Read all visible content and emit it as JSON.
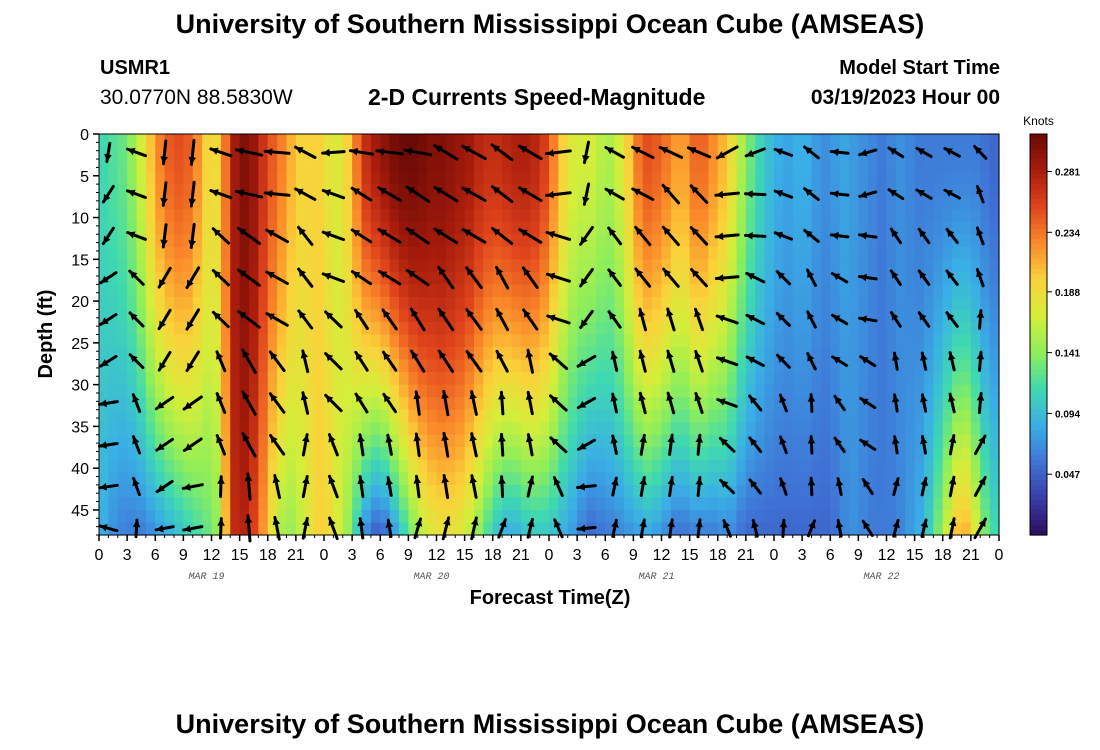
{
  "page": {
    "title": "University of Southern Mississippi Ocean Cube (AMSEAS)",
    "title_repeat": "University of Southern Mississippi Ocean Cube (AMSEAS)",
    "station": "USMR1",
    "coordinates": "30.0770N  88.5830W",
    "model_start_label": "Model Start Time",
    "model_start_value": "03/19/2023 Hour 00"
  },
  "chart_data": {
    "type": "heatmap",
    "title": "2-D Currents Speed-Magnitude",
    "xlabel": "Forecast Time(Z)",
    "ylabel": "Depth (ft)",
    "x_hours_range": [
      0,
      96
    ],
    "y_depth_range_ft": [
      0,
      48
    ],
    "x_tick_labels": [
      "0",
      "3",
      "6",
      "9",
      "12",
      "15",
      "18",
      "21",
      "0",
      "3",
      "6",
      "9",
      "12",
      "15",
      "18",
      "21",
      "0",
      "3",
      "6",
      "9",
      "12",
      "15",
      "18",
      "21",
      "0",
      "3",
      "6",
      "9",
      "12",
      "15",
      "18",
      "21",
      "0"
    ],
    "date_labels": [
      {
        "text": "MAR 19",
        "hour": 12
      },
      {
        "text": "MAR 20",
        "hour": 36
      },
      {
        "text": "MAR 21",
        "hour": 60
      },
      {
        "text": "MAR 22",
        "hour": 84
      }
    ],
    "y_ticks": [
      0,
      5,
      10,
      15,
      20,
      25,
      30,
      35,
      40,
      45
    ],
    "colorbar": {
      "unit_label": "Knots",
      "ticks": [
        "0.281",
        "0.234",
        "0.188",
        "0.141",
        "0.094",
        "0.047"
      ],
      "tick_values": [
        0.281,
        0.234,
        0.188,
        0.141,
        0.094,
        0.047
      ],
      "range": [
        0.0,
        0.31
      ],
      "colors": [
        "#2a0d5e",
        "#3a3ca8",
        "#3f74d6",
        "#3aaee6",
        "#3fd9b0",
        "#8eee5a",
        "#d4ee3a",
        "#fbd23a",
        "#fb8a2a",
        "#e0441c",
        "#a81c0c",
        "#6a0a06"
      ]
    },
    "speed_time_profile_hours": [
      0,
      1.5,
      3,
      4.5,
      6,
      7,
      8,
      9,
      10,
      11,
      12,
      13,
      14,
      15,
      16,
      17,
      18,
      19,
      20,
      21,
      22,
      23,
      24,
      25,
      26,
      27,
      28,
      29,
      30,
      31,
      32,
      33,
      34,
      35,
      36,
      37,
      38,
      39,
      40,
      41,
      42,
      43,
      44,
      45,
      46,
      47,
      48,
      49,
      50,
      51,
      52,
      53,
      54,
      55,
      56,
      57,
      58,
      59,
      60,
      61,
      62,
      63,
      64,
      65,
      66,
      67,
      68,
      69,
      70,
      71,
      72,
      73,
      74,
      75,
      76,
      77,
      78,
      79,
      80,
      81,
      82,
      83,
      84,
      85,
      86,
      87,
      88,
      89,
      90,
      91,
      92,
      93,
      94,
      95,
      96
    ],
    "speed_surface_knots": [
      0.11,
      0.12,
      0.13,
      0.17,
      0.22,
      0.24,
      0.25,
      0.25,
      0.24,
      0.21,
      0.18,
      0.2,
      0.27,
      0.3,
      0.3,
      0.28,
      0.25,
      0.24,
      0.22,
      0.2,
      0.19,
      0.2,
      0.19,
      0.17,
      0.18,
      0.21,
      0.26,
      0.28,
      0.29,
      0.3,
      0.31,
      0.31,
      0.31,
      0.3,
      0.3,
      0.3,
      0.29,
      0.29,
      0.28,
      0.27,
      0.27,
      0.27,
      0.28,
      0.28,
      0.28,
      0.27,
      0.25,
      0.21,
      0.18,
      0.17,
      0.17,
      0.17,
      0.15,
      0.16,
      0.18,
      0.22,
      0.25,
      0.25,
      0.24,
      0.23,
      0.21,
      0.23,
      0.25,
      0.23,
      0.22,
      0.2,
      0.17,
      0.14,
      0.12,
      0.1,
      0.09,
      0.08,
      0.08,
      0.09,
      0.08,
      0.07,
      0.07,
      0.08,
      0.08,
      0.07,
      0.07,
      0.06,
      0.06,
      0.07,
      0.07,
      0.06,
      0.06,
      0.06,
      0.06,
      0.06,
      0.06,
      0.06,
      0.06,
      0.05,
      0.05
    ],
    "speed_bottom_knots": [
      0.09,
      0.07,
      0.06,
      0.06,
      0.07,
      0.08,
      0.09,
      0.1,
      0.11,
      0.12,
      0.13,
      0.15,
      0.26,
      0.28,
      0.27,
      0.24,
      0.2,
      0.16,
      0.14,
      0.15,
      0.17,
      0.19,
      0.2,
      0.18,
      0.16,
      0.13,
      0.08,
      0.05,
      0.04,
      0.06,
      0.09,
      0.12,
      0.15,
      0.17,
      0.18,
      0.18,
      0.18,
      0.17,
      0.15,
      0.13,
      0.1,
      0.09,
      0.08,
      0.09,
      0.1,
      0.1,
      0.1,
      0.09,
      0.08,
      0.07,
      0.05,
      0.05,
      0.06,
      0.06,
      0.07,
      0.07,
      0.08,
      0.08,
      0.07,
      0.06,
      0.05,
      0.06,
      0.06,
      0.06,
      0.06,
      0.07,
      0.06,
      0.05,
      0.05,
      0.05,
      0.05,
      0.05,
      0.05,
      0.05,
      0.05,
      0.05,
      0.05,
      0.06,
      0.07,
      0.07,
      0.06,
      0.06,
      0.06,
      0.06,
      0.07,
      0.08,
      0.09,
      0.12,
      0.15,
      0.19,
      0.22,
      0.2,
      0.15,
      0.12,
      0.11
    ],
    "vector_arrow_directions_deg_by_hour": [
      200,
      200,
      250,
      280,
      190,
      180,
      178,
      175,
      175,
      180,
      185,
      270,
      285,
      280,
      280,
      280,
      290,
      280,
      275,
      270,
      280,
      300,
      290,
      260,
      270,
      260,
      280,
      285,
      275,
      280,
      285,
      300,
      290,
      290,
      290,
      290,
      290,
      290,
      290,
      290,
      295,
      300,
      300,
      295,
      300,
      295,
      290,
      280,
      260,
      240,
      200,
      190,
      180,
      270,
      300,
      290,
      290,
      300,
      280,
      270,
      300,
      300,
      310,
      300,
      280,
      300,
      250,
      260,
      270,
      260,
      280,
      280,
      280,
      290,
      300,
      300,
      290,
      300,
      270,
      250,
      250,
      250,
      300,
      300,
      300,
      290,
      300,
      300,
      300,
      300,
      300,
      310,
      320,
      320,
      330,
      330,
      330
    ]
  }
}
